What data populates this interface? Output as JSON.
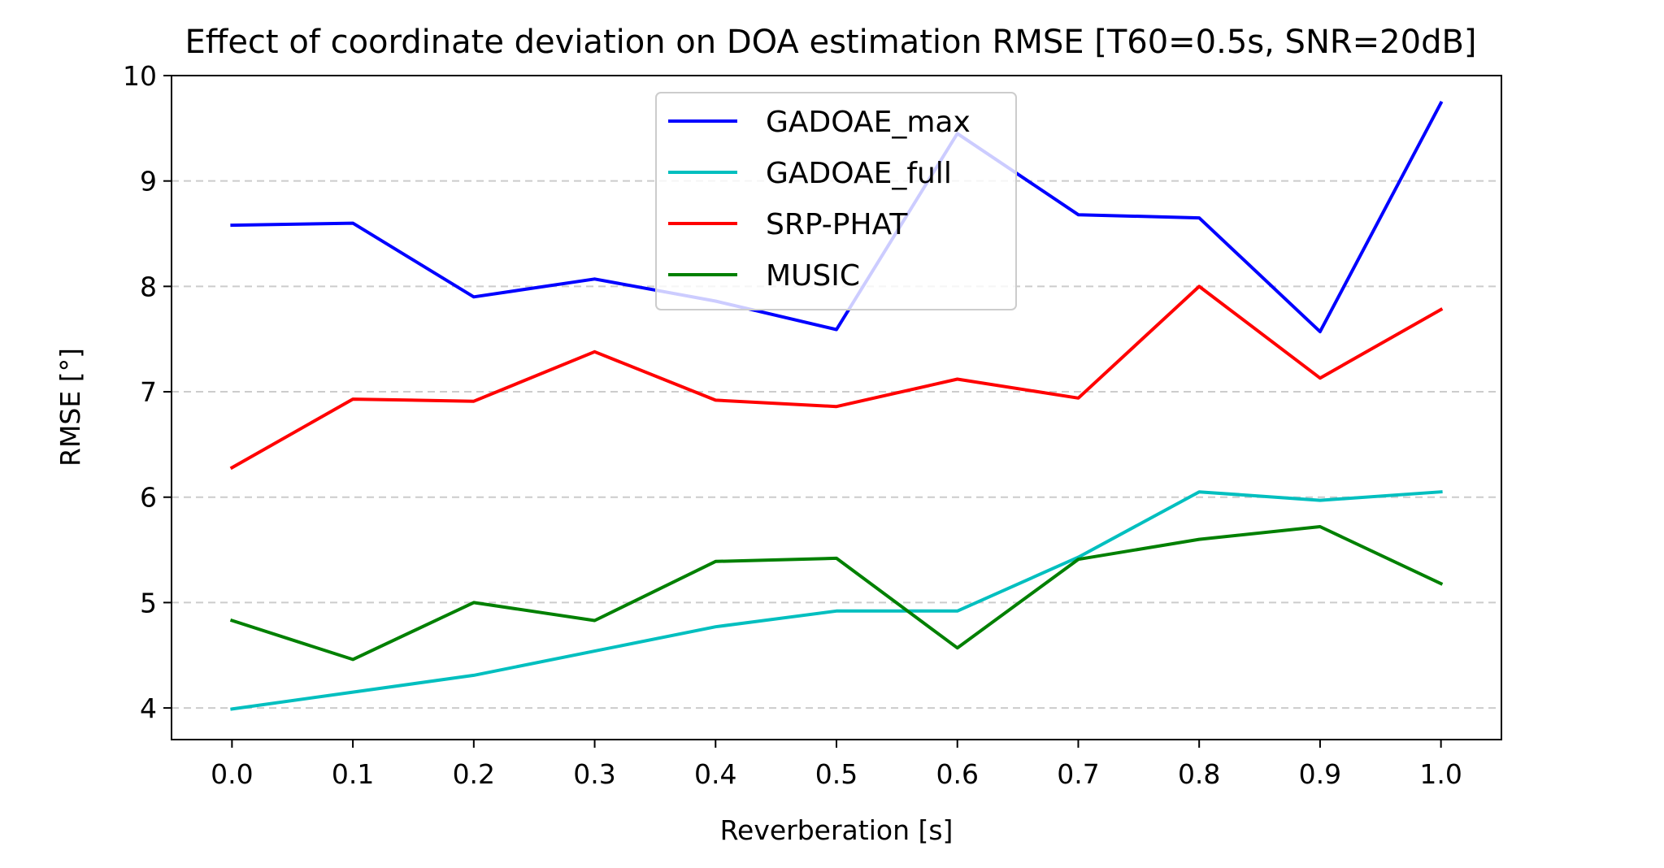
{
  "chart_data": {
    "type": "line",
    "title": "Effect of coordinate deviation on DOA estimation RMSE [T60=0.5s, SNR=20dB]",
    "xlabel": "Reverberation [s]",
    "ylabel": "RMSE [°]",
    "x": [
      0.0,
      0.1,
      0.2,
      0.3,
      0.4,
      0.5,
      0.6,
      0.7,
      0.8,
      0.9,
      1.0
    ],
    "x_tick_labels": [
      "0.0",
      "0.1",
      "0.2",
      "0.3",
      "0.4",
      "0.5",
      "0.6",
      "0.7",
      "0.8",
      "0.9",
      "1.0"
    ],
    "y_ticks": [
      4,
      5,
      6,
      7,
      8,
      9,
      10
    ],
    "y_tick_labels": [
      "4",
      "5",
      "6",
      "7",
      "8",
      "9",
      "10"
    ],
    "xlim": [
      -0.05,
      1.05
    ],
    "ylim": [
      3.7,
      10.0
    ],
    "grid": "horizontal dashed",
    "legend_position": "top-center",
    "series": [
      {
        "name": "GADOAE_max",
        "color": "#0000ff",
        "values": [
          8.58,
          8.6,
          7.9,
          8.07,
          7.86,
          7.59,
          9.45,
          8.68,
          8.65,
          7.57,
          9.74
        ]
      },
      {
        "name": "GADOAE_full",
        "color": "#00bfbf",
        "values": [
          3.99,
          4.15,
          4.31,
          4.54,
          4.77,
          4.92,
          4.92,
          5.43,
          6.05,
          5.97,
          6.05
        ]
      },
      {
        "name": "SRP-PHAT",
        "color": "#ff0000",
        "values": [
          6.28,
          6.93,
          6.91,
          7.38,
          6.92,
          6.86,
          7.12,
          6.94,
          8.0,
          7.13,
          7.78
        ]
      },
      {
        "name": "MUSIC",
        "color": "#008000",
        "values": [
          4.83,
          4.46,
          5.0,
          4.83,
          5.39,
          5.42,
          4.57,
          5.41,
          5.6,
          5.72,
          5.18
        ]
      }
    ]
  }
}
